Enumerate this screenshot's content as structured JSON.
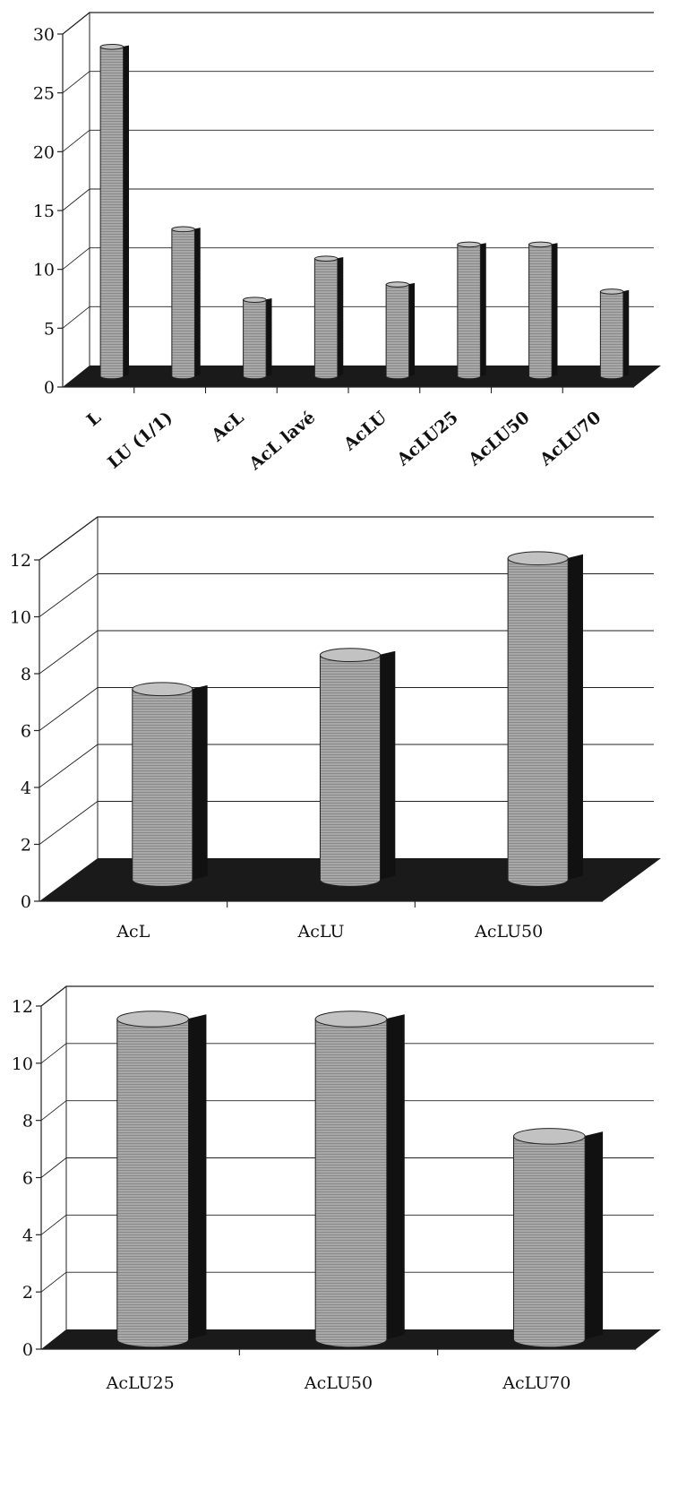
{
  "chart_data": [
    {
      "type": "bar",
      "style": "3d-cylinder",
      "categories": [
        "L",
        "LU (1/1)",
        "AcL",
        "AcL lavé",
        "AcLU",
        "AcLU25",
        "AcLU50",
        "AcLU70"
      ],
      "values": [
        28,
        12.5,
        6.5,
        10,
        7.8,
        11.2,
        11.2,
        7.2
      ],
      "ylim": [
        0,
        30
      ],
      "yticks": [
        "0",
        "5",
        "10",
        "15",
        "20",
        "25",
        "30"
      ],
      "grid": true,
      "category_label_rotation": "diagonal",
      "colors": {
        "bar": "#a8a8a8",
        "bar_shadow": "#111111",
        "floor": "#1a1a1a",
        "grid": "#222222"
      }
    },
    {
      "type": "bar",
      "style": "3d-cylinder",
      "categories": [
        "AcL",
        "AcLU",
        "AcLU50"
      ],
      "values": [
        6.7,
        7.9,
        11.3
      ],
      "ylim": [
        0,
        12
      ],
      "yticks": [
        "0",
        "2",
        "4",
        "6",
        "8",
        "10",
        "12"
      ],
      "grid": true,
      "colors": {
        "bar": "#a8a8a8",
        "bar_shadow": "#111111",
        "floor": "#1a1a1a",
        "grid": "#222222"
      }
    },
    {
      "type": "bar",
      "style": "3d-cylinder",
      "categories": [
        "AcLU25",
        "AcLU50",
        "AcLU70"
      ],
      "values": [
        11.2,
        11.2,
        7.1
      ],
      "ylim": [
        0,
        12
      ],
      "yticks": [
        "0",
        "2",
        "4",
        "6",
        "8",
        "10",
        "12"
      ],
      "grid": true,
      "colors": {
        "bar": "#a8a8a8",
        "bar_shadow": "#111111",
        "floor": "#1a1a1a",
        "grid": "#222222"
      }
    }
  ]
}
